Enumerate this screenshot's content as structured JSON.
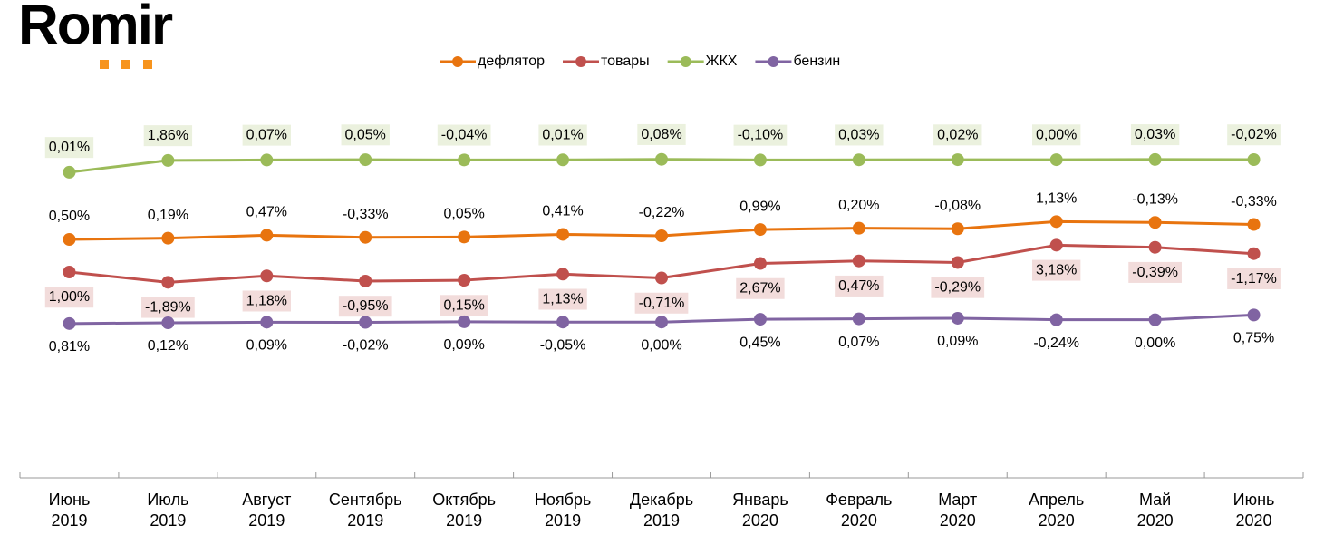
{
  "logo": "Romir",
  "chart_data": {
    "type": "line",
    "categories": [
      [
        "Июнь",
        "2019"
      ],
      [
        "Июль",
        "2019"
      ],
      [
        "Август",
        "2019"
      ],
      [
        "Сентябрь",
        "2019"
      ],
      [
        "Октябрь",
        "2019"
      ],
      [
        "Ноябрь",
        "2019"
      ],
      [
        "Декабрь",
        "2019"
      ],
      [
        "Январь",
        "2020"
      ],
      [
        "Февраль",
        "2020"
      ],
      [
        "Март",
        "2020"
      ],
      [
        "Апрель",
        "2020"
      ],
      [
        "Май",
        "2020"
      ],
      [
        "Июнь",
        "2020"
      ]
    ],
    "series": [
      {
        "name": "дефлятор",
        "color": "#e8740f",
        "values": [
          0.5,
          0.19,
          0.47,
          -0.33,
          0.05,
          0.41,
          -0.22,
          0.99,
          0.2,
          -0.08,
          1.13,
          -0.13,
          -0.33
        ],
        "value_labels": [
          "0,50%",
          "0,19%",
          "0,47%",
          "-0,33%",
          "0,05%",
          "0,41%",
          "-0,22%",
          "0,99%",
          "0,20%",
          "-0,08%",
          "1,13%",
          "-0,13%",
          "-0,33%"
        ]
      },
      {
        "name": "товары",
        "color": "#c0504d",
        "label_background": "#f2dcdb",
        "values": [
          1.0,
          -1.89,
          1.18,
          -0.95,
          0.15,
          1.13,
          -0.71,
          2.67,
          0.47,
          -0.29,
          3.18,
          -0.39,
          -1.17
        ],
        "value_labels": [
          "1,00%",
          "-1,89%",
          "1,18%",
          "-0,95%",
          "0,15%",
          "1,13%",
          "-0,71%",
          "2,67%",
          "0,47%",
          "-0,29%",
          "3,18%",
          "-0,39%",
          "-1,17%"
        ]
      },
      {
        "name": "ЖКХ",
        "color": "#9bbb59",
        "label_background": "#ebf1de",
        "values": [
          0.01,
          1.86,
          0.07,
          0.05,
          -0.04,
          0.01,
          0.08,
          -0.1,
          0.03,
          0.02,
          0.0,
          0.03,
          -0.02
        ],
        "value_labels": [
          "0,01%",
          "1,86%",
          "0,07%",
          "0,05%",
          "-0,04%",
          "0,01%",
          "0,08%",
          "-0,10%",
          "0,03%",
          "0,02%",
          "0,00%",
          "0,03%",
          "-0,02%"
        ]
      },
      {
        "name": "бензин",
        "color": "#8064a2",
        "values": [
          0.81,
          0.12,
          0.09,
          -0.02,
          0.09,
          -0.05,
          0.0,
          0.45,
          0.07,
          0.09,
          -0.24,
          0.0,
          0.75
        ],
        "value_labels": [
          "0,81%",
          "0,12%",
          "0,09%",
          "-0,02%",
          "0,09%",
          "-0,05%",
          "0,00%",
          "0,45%",
          "0,07%",
          "0,09%",
          "-0,24%",
          "0,00%",
          "0,75%"
        ]
      }
    ]
  }
}
